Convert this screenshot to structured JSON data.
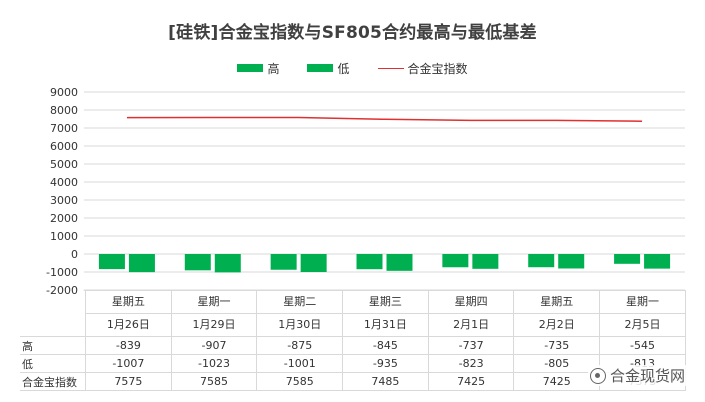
{
  "chart_data": {
    "type": "bar",
    "title": "[硅铁]合金宝指数与SF805合约最高与最低基差",
    "categories": [
      "星期五",
      "星期一",
      "星期二",
      "星期三",
      "星期四",
      "星期五",
      "星期一"
    ],
    "dates": [
      "1月26日",
      "1月29日",
      "1月30日",
      "1月31日",
      "2月1日",
      "2月2日",
      "2月5日"
    ],
    "series": [
      {
        "name": "高",
        "type": "bar",
        "color": "#00b050",
        "values": [
          -839,
          -907,
          -875,
          -845,
          -737,
          -735,
          -545
        ]
      },
      {
        "name": "低",
        "type": "bar",
        "color": "#00b050",
        "values": [
          -1007,
          -1023,
          -1001,
          -935,
          -823,
          -805,
          -813
        ]
      },
      {
        "name": "合金宝指数",
        "type": "line",
        "color": "#e03030",
        "values": [
          7575,
          7585,
          7585,
          7485,
          7425,
          7425,
          7375
        ]
      }
    ],
    "yticks": [
      9000,
      8000,
      7000,
      6000,
      5000,
      4000,
      3000,
      2000,
      1000,
      0,
      -1000,
      -2000
    ],
    "ylim": [
      -2000,
      9000
    ],
    "grid": true,
    "legend_position": "top",
    "table_labels": {
      "high": "高",
      "low": "低",
      "index": "合金宝指数"
    },
    "table_displays": {
      "high": [
        "-839",
        "-907",
        "-875",
        "-845",
        "-737",
        "-735",
        "-545"
      ],
      "low": [
        "-1007",
        "-1023",
        "-1001",
        "-935",
        "-823",
        "-805",
        "-813"
      ],
      "index": [
        "7575",
        "7585",
        "7585",
        "7485",
        "7425",
        "7425",
        "7375"
      ]
    }
  },
  "watermark": {
    "text": "合金现货网",
    "icon": "wechat-icon"
  }
}
